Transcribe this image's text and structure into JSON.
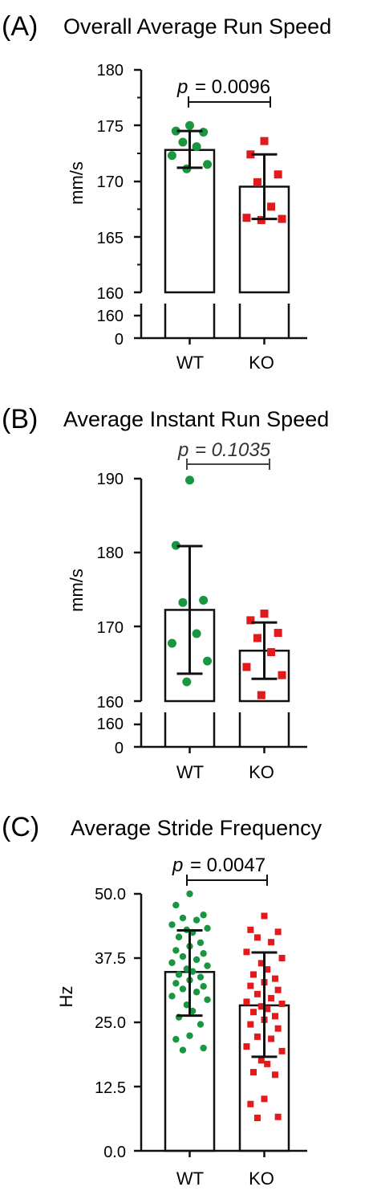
{
  "chart_data": [
    {
      "type": "bar",
      "panel_label": "(A)",
      "title": "Overall Average Run Speed",
      "xlabel": "",
      "ylabel": "mm/s",
      "categories": [
        "WT",
        "KO"
      ],
      "values": [
        172.8,
        169.5
      ],
      "error": [
        [
          171.2,
          174.5
        ],
        [
          166.6,
          172.4
        ]
      ],
      "ylim": [
        160,
        180
      ],
      "yticks": [
        "180",
        "175",
        "170",
        "165",
        "160"
      ],
      "broken_axis_ticks": [
        "160",
        "0"
      ],
      "grid": false,
      "points": {
        "WT": [
          175.0,
          174.5,
          174.4,
          173.5,
          173.1,
          172.3,
          171.5,
          171.1
        ],
        "KO": [
          173.6,
          172.4,
          170.6,
          169.9,
          167.7,
          166.7,
          166.6,
          166.5
        ]
      },
      "colors": {
        "WT": "#1a9641",
        "KO": "#e31a1c"
      },
      "comparison": {
        "p_label": "p",
        "p_value": "= 0.0096",
        "italic_value": false
      }
    },
    {
      "type": "bar",
      "panel_label": "(B)",
      "title": "Average Instant Run Speed",
      "xlabel": "",
      "ylabel": "mm/s",
      "categories": [
        "WT",
        "KO"
      ],
      "values": [
        172.3,
        166.8
      ],
      "error": [
        [
          163.7,
          180.9
        ],
        [
          163.0,
          170.6
        ]
      ],
      "ylim": [
        160,
        190
      ],
      "yticks": [
        "190",
        "180",
        "170",
        "160"
      ],
      "broken_axis_ticks": [
        "160",
        "0"
      ],
      "grid": false,
      "points": {
        "WT": [
          189.8,
          181.0,
          173.6,
          173.3,
          169.1,
          167.8,
          165.4,
          162.6
        ],
        "KO": [
          171.8,
          170.9,
          169.2,
          168.5,
          166.6,
          164.6,
          163.5,
          160.8
        ]
      },
      "colors": {
        "WT": "#1a9641",
        "KO": "#e31a1c"
      },
      "comparison": {
        "p_label": "p",
        "p_value": "= 0.1035",
        "italic_value": true
      }
    },
    {
      "type": "bar",
      "panel_label": "(C)",
      "title": "Average Stride Frequency",
      "xlabel": "",
      "ylabel": "Hz",
      "categories": [
        "WT",
        "KO"
      ],
      "values": [
        34.8,
        28.3
      ],
      "error": [
        [
          26.3,
          42.9
        ],
        [
          18.3,
          38.6
        ]
      ],
      "ylim": [
        0,
        50
      ],
      "yticks": [
        "50.0",
        "37.5",
        "25.0",
        "12.5",
        "0.0"
      ],
      "grid": false,
      "points": {
        "WT": [
          50.0,
          47.8,
          45.9,
          45.3,
          44.9,
          44.0,
          43.3,
          43.0,
          42.5,
          41.6,
          40.5,
          39.8,
          39.0,
          38.4,
          37.8,
          37.2,
          36.6,
          36.0,
          35.4,
          34.9,
          34.3,
          33.8,
          33.2,
          32.6,
          32.0,
          31.5,
          30.9,
          30.1,
          29.4,
          28.4,
          27.2,
          26.0,
          24.6,
          22.4,
          21.7,
          20.0,
          19.6
        ],
        "KO": [
          45.7,
          43.0,
          42.6,
          41.5,
          40.6,
          38.7,
          37.5,
          36.5,
          35.3,
          34.3,
          33.5,
          32.8,
          32.1,
          31.3,
          30.5,
          29.7,
          29.0,
          28.6,
          28.1,
          27.6,
          27.0,
          26.2,
          25.5,
          24.6,
          23.8,
          22.2,
          21.8,
          20.3,
          19.4,
          17.6,
          16.9,
          15.3,
          14.8,
          10.1,
          9.1,
          6.6,
          6.4
        ]
      },
      "colors": {
        "WT": "#1a9641",
        "KO": "#e31a1c"
      },
      "comparison": {
        "p_label": "p",
        "p_value": "= 0.0047",
        "italic_value": false
      }
    }
  ]
}
